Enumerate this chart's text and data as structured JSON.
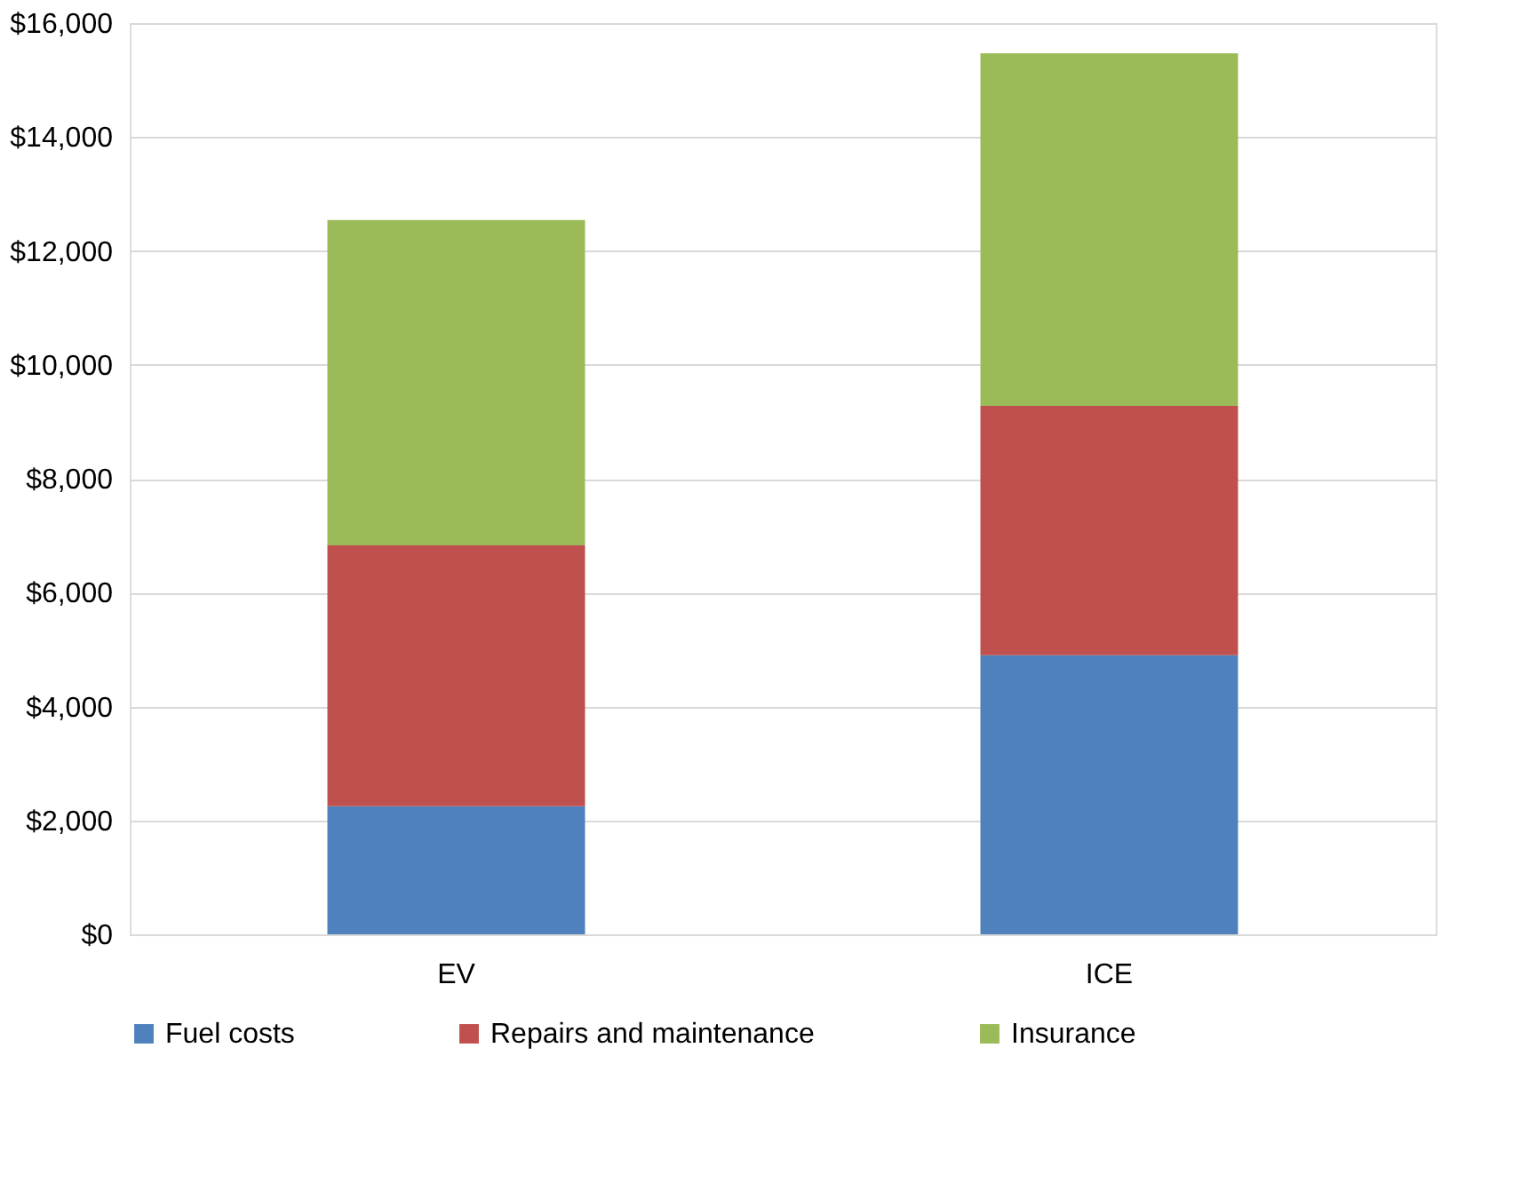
{
  "chart_data": {
    "type": "bar",
    "stacked": true,
    "categories": [
      "EV",
      "ICE"
    ],
    "series": [
      {
        "name": "Fuel costs",
        "color": "#4f81bd",
        "values": [
          2250,
          4900
        ]
      },
      {
        "name": "Repairs and maintenance",
        "color": "#c0504d",
        "values": [
          4580,
          4380
        ]
      },
      {
        "name": "Insurance",
        "color": "#9bbb59",
        "values": [
          5710,
          6190
        ]
      }
    ],
    "ylim": [
      0,
      16000
    ],
    "yticks": [
      {
        "value": 0,
        "label": "$0"
      },
      {
        "value": 2000,
        "label": "$2,000"
      },
      {
        "value": 4000,
        "label": "$4,000"
      },
      {
        "value": 6000,
        "label": "$6,000"
      },
      {
        "value": 8000,
        "label": "$8,000"
      },
      {
        "value": 10000,
        "label": "$10,000"
      },
      {
        "value": 12000,
        "label": "$12,000"
      },
      {
        "value": 14000,
        "label": "$14,000"
      },
      {
        "value": 16000,
        "label": "$16,000"
      }
    ],
    "grid": "y",
    "legend": "bottom"
  }
}
